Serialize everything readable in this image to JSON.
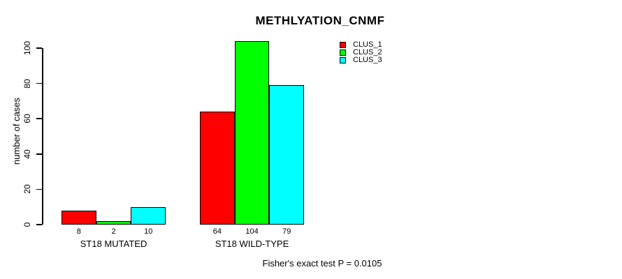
{
  "chart_data": {
    "type": "bar",
    "title": "METHLYATION_CNMF",
    "ylabel": "number of cases",
    "xlabel": "",
    "categories": [
      "ST18 MUTATED",
      "ST18 WILD-TYPE"
    ],
    "series": [
      {
        "name": "CLUS_1",
        "color": "#ff0000",
        "values": [
          8,
          64
        ]
      },
      {
        "name": "CLUS_2",
        "color": "#00ff00",
        "values": [
          2,
          104
        ]
      },
      {
        "name": "CLUS_3",
        "color": "#00ffff",
        "values": [
          10,
          79
        ]
      }
    ],
    "bar_value_labels": [
      [
        "8",
        "2",
        "10"
      ],
      [
        "64",
        "104",
        "79"
      ]
    ],
    "ylim": [
      0,
      100
    ],
    "yticks": [
      0,
      20,
      40,
      60,
      80,
      100
    ],
    "grid": false,
    "legend_position": "top-right",
    "annotation": "Fisher's exact test P = 0.0105"
  }
}
